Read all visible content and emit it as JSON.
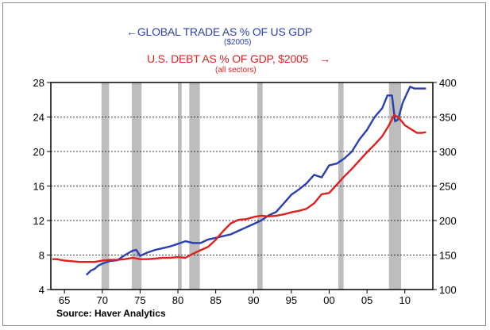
{
  "chart_data": {
    "type": "line",
    "legend": {
      "blue_title": "GLOBAL TRADE AS % OF US GDP",
      "blue_sub": "($2005)",
      "blue_arrow": "←",
      "red_title": "U.S. DEBT AS % OF GDP, $2005",
      "red_sub": "(all sectors)",
      "red_arrow": "→"
    },
    "source": "Source: Haver Analytics",
    "x_ticks": [
      "65",
      "70",
      "75",
      "80",
      "85",
      "90",
      "95",
      "00",
      "05",
      "10"
    ],
    "x_tick_years": [
      1965,
      1970,
      1975,
      1980,
      1985,
      1990,
      1995,
      2000,
      2005,
      2010
    ],
    "xlim": [
      1963.2,
      2013.7
    ],
    "left_axis": {
      "ylim": [
        4,
        28
      ],
      "ticks": [
        4,
        8,
        12,
        16,
        20,
        24,
        28
      ]
    },
    "right_axis": {
      "ylim": [
        100,
        400
      ],
      "ticks": [
        100,
        150,
        200,
        250,
        300,
        350,
        400
      ]
    },
    "recessions": [
      [
        1969.9,
        1970.9
      ],
      [
        1973.9,
        1975.2
      ],
      [
        1980.0,
        1980.5
      ],
      [
        1981.5,
        1982.9
      ],
      [
        1990.5,
        1991.2
      ],
      [
        2001.2,
        2001.9
      ],
      [
        2007.9,
        2009.5
      ]
    ],
    "series": [
      {
        "name": "GLOBAL TRADE AS % OF US GDP",
        "axis": "left",
        "color": "#2a3fb0",
        "points": [
          [
            1967.9,
            5.7
          ],
          [
            1968.5,
            6.2
          ],
          [
            1969,
            6.4
          ],
          [
            1969.5,
            6.8
          ],
          [
            1970,
            7.0
          ],
          [
            1971,
            7.3
          ],
          [
            1972,
            7.4
          ],
          [
            1973,
            8.0
          ],
          [
            1974,
            8.5
          ],
          [
            1974.5,
            8.6
          ],
          [
            1975,
            7.9
          ],
          [
            1976,
            8.3
          ],
          [
            1977,
            8.6
          ],
          [
            1978,
            8.8
          ],
          [
            1979,
            9.0
          ],
          [
            1980,
            9.3
          ],
          [
            1981,
            9.6
          ],
          [
            1982,
            9.4
          ],
          [
            1983,
            9.4
          ],
          [
            1984,
            9.8
          ],
          [
            1985,
            10.0
          ],
          [
            1986,
            10.2
          ],
          [
            1987,
            10.4
          ],
          [
            1988,
            10.8
          ],
          [
            1989,
            11.2
          ],
          [
            1990,
            11.6
          ],
          [
            1991,
            12.0
          ],
          [
            1992,
            12.6
          ],
          [
            1993,
            13.0
          ],
          [
            1994,
            14.0
          ],
          [
            1995,
            15.0
          ],
          [
            1996,
            15.6
          ],
          [
            1997,
            16.3
          ],
          [
            1998,
            17.3
          ],
          [
            1999,
            17.0
          ],
          [
            2000,
            18.4
          ],
          [
            2001,
            18.6
          ],
          [
            2002,
            19.2
          ],
          [
            2003,
            20.0
          ],
          [
            2004,
            21.4
          ],
          [
            2005,
            22.5
          ],
          [
            2006,
            24.0
          ],
          [
            2007,
            25.0
          ],
          [
            2007.7,
            26.5
          ],
          [
            2008.3,
            26.5
          ],
          [
            2008.7,
            23.5
          ],
          [
            2009.1,
            23.7
          ],
          [
            2009.7,
            25.6
          ],
          [
            2010.2,
            26.6
          ],
          [
            2010.7,
            27.5
          ],
          [
            2011.3,
            27.3
          ],
          [
            2012,
            27.3
          ],
          [
            2012.8,
            27.3
          ]
        ]
      },
      {
        "name": "U.S. DEBT AS % OF GDP, $2005",
        "axis": "right",
        "color": "#e0201e",
        "points": [
          [
            1963.4,
            144
          ],
          [
            1964,
            144
          ],
          [
            1965,
            142
          ],
          [
            1966,
            141
          ],
          [
            1967,
            140
          ],
          [
            1968,
            140
          ],
          [
            1969,
            140
          ],
          [
            1970,
            142
          ],
          [
            1971,
            143
          ],
          [
            1972,
            143
          ],
          [
            1973,
            144
          ],
          [
            1974,
            146
          ],
          [
            1975,
            144
          ],
          [
            1976,
            144
          ],
          [
            1977,
            145
          ],
          [
            1978,
            146
          ],
          [
            1979,
            146
          ],
          [
            1980,
            147
          ],
          [
            1981,
            146
          ],
          [
            1982,
            152
          ],
          [
            1983,
            157
          ],
          [
            1984,
            162
          ],
          [
            1985,
            172
          ],
          [
            1986,
            185
          ],
          [
            1987,
            196
          ],
          [
            1988,
            201
          ],
          [
            1989,
            202
          ],
          [
            1990,
            205
          ],
          [
            1991,
            207
          ],
          [
            1992,
            206
          ],
          [
            1993,
            207
          ],
          [
            1994,
            209
          ],
          [
            1995,
            212
          ],
          [
            1996,
            214
          ],
          [
            1997,
            217
          ],
          [
            1998,
            225
          ],
          [
            1999,
            238
          ],
          [
            2000,
            240
          ],
          [
            2001,
            252
          ],
          [
            2002,
            264
          ],
          [
            2003,
            275
          ],
          [
            2004,
            287
          ],
          [
            2005,
            299
          ],
          [
            2006,
            310
          ],
          [
            2007,
            322
          ],
          [
            2007.9,
            338
          ],
          [
            2008.6,
            353
          ],
          [
            2009.2,
            349
          ],
          [
            2010,
            338
          ],
          [
            2011,
            331
          ],
          [
            2011.6,
            327
          ],
          [
            2012.3,
            327
          ],
          [
            2012.8,
            328
          ]
        ]
      }
    ],
    "grid": "horizontal-dashed",
    "legend_placement": "top-center"
  }
}
